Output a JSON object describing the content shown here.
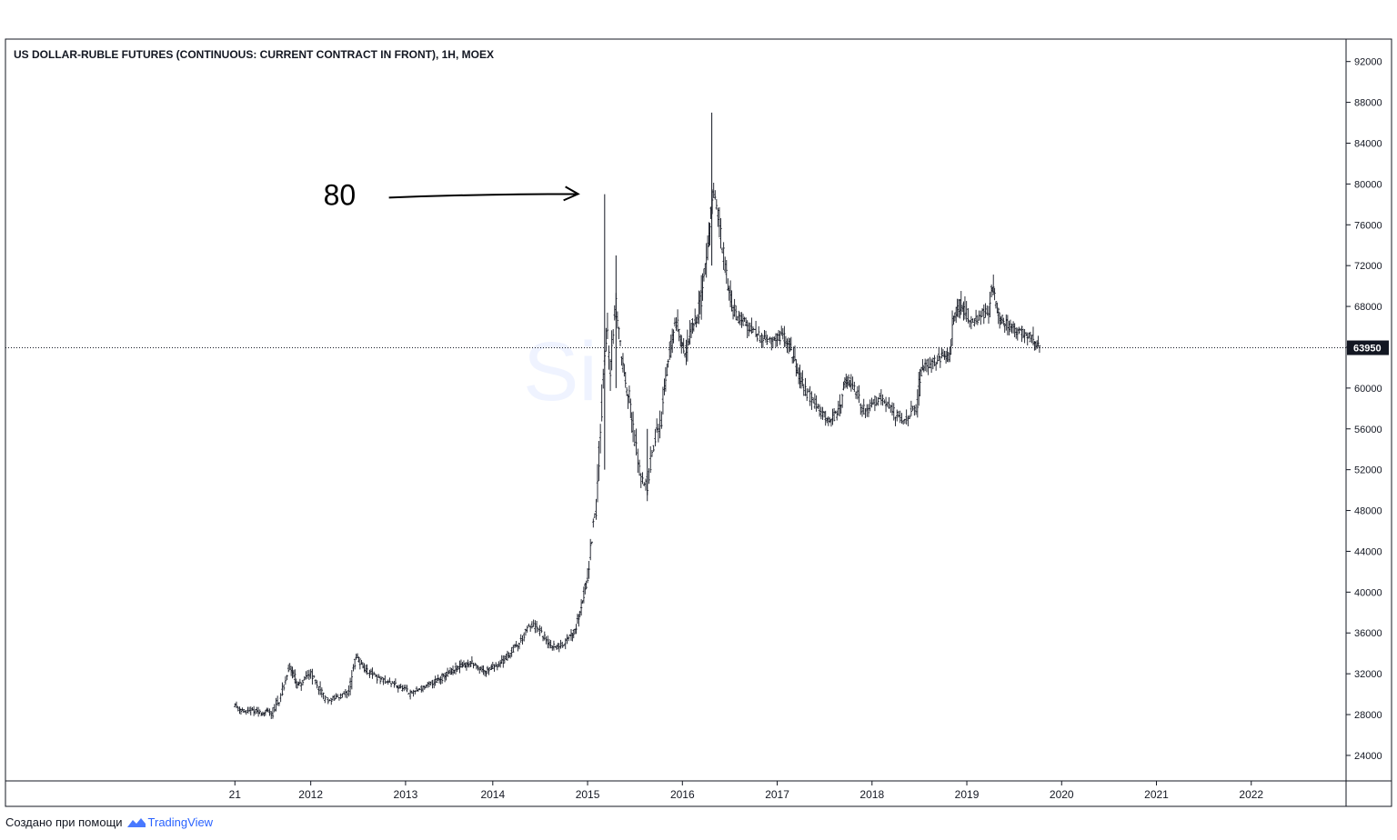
{
  "chart_data": {
    "type": "bar",
    "title": "US DOLLAR-RUBLE FUTURES (CONTINUOUS: CURRENT CONTRACT IN FRONT), 1H, MOEX",
    "watermark": "Si",
    "x_ticks": [
      "21",
      "2012",
      "2013",
      "2014",
      "2015",
      "2016",
      "2017",
      "2018",
      "2019",
      "2020",
      "2021",
      "2022"
    ],
    "x_tick_years": [
      2011.0,
      2011.8,
      2012.8,
      2013.72,
      2014.72,
      2015.72,
      2016.72,
      2017.72,
      2018.72,
      2019.72,
      2020.72,
      2021.72
    ],
    "y_ticks": [
      24000,
      28000,
      32000,
      36000,
      40000,
      44000,
      48000,
      52000,
      56000,
      60000,
      64000,
      68000,
      72000,
      76000,
      80000,
      84000,
      88000,
      92000
    ],
    "ylim": [
      21500,
      94200
    ],
    "xlim": [
      2008.58,
      2022.72
    ],
    "current_price": 63950,
    "current_price_label": "63950",
    "annotation": {
      "text": "80",
      "target_x": 2014.62,
      "target_y": 79200
    },
    "series": [
      {
        "points": [
          [
            2011.0,
            29000
          ],
          [
            2011.05,
            28600
          ],
          [
            2011.12,
            28200
          ],
          [
            2011.2,
            28400
          ],
          [
            2011.28,
            28100
          ],
          [
            2011.35,
            28300
          ],
          [
            2011.4,
            28000
          ],
          [
            2011.45,
            29200
          ],
          [
            2011.5,
            30000
          ],
          [
            2011.55,
            31800
          ],
          [
            2011.58,
            32800
          ],
          [
            2011.62,
            32000
          ],
          [
            2011.66,
            30800
          ],
          [
            2011.7,
            31000
          ],
          [
            2011.75,
            31500
          ],
          [
            2011.8,
            32200
          ],
          [
            2011.85,
            31200
          ],
          [
            2011.9,
            30400
          ],
          [
            2011.95,
            29600
          ],
          [
            2012.0,
            29400
          ],
          [
            2012.05,
            29600
          ],
          [
            2012.1,
            29800
          ],
          [
            2012.15,
            29900
          ],
          [
            2012.2,
            30200
          ],
          [
            2012.25,
            32500
          ],
          [
            2012.28,
            33600
          ],
          [
            2012.32,
            33200
          ],
          [
            2012.38,
            32400
          ],
          [
            2012.45,
            32000
          ],
          [
            2012.5,
            31600
          ],
          [
            2012.55,
            31400
          ],
          [
            2012.6,
            31200
          ],
          [
            2012.68,
            31000
          ],
          [
            2012.75,
            30600
          ],
          [
            2012.8,
            30400
          ],
          [
            2012.85,
            30000
          ],
          [
            2012.9,
            30300
          ],
          [
            2012.95,
            30500
          ],
          [
            2013.0,
            30700
          ],
          [
            2013.05,
            30900
          ],
          [
            2013.1,
            31200
          ],
          [
            2013.2,
            31700
          ],
          [
            2013.3,
            32200
          ],
          [
            2013.4,
            32800
          ],
          [
            2013.5,
            33000
          ],
          [
            2013.58,
            32600
          ],
          [
            2013.65,
            32200
          ],
          [
            2013.72,
            32700
          ],
          [
            2013.8,
            33000
          ],
          [
            2013.86,
            33600
          ],
          [
            2013.92,
            34200
          ],
          [
            2014.0,
            35000
          ],
          [
            2014.05,
            35800
          ],
          [
            2014.1,
            36500
          ],
          [
            2014.15,
            36800
          ],
          [
            2014.2,
            36300
          ],
          [
            2014.25,
            35800
          ],
          [
            2014.3,
            35000
          ],
          [
            2014.38,
            34600
          ],
          [
            2014.42,
            34600
          ],
          [
            2014.47,
            35000
          ],
          [
            2014.52,
            35600
          ],
          [
            2014.56,
            36000
          ],
          [
            2014.6,
            36700
          ],
          [
            2014.64,
            38300
          ],
          [
            2014.68,
            39600
          ],
          [
            2014.72,
            41500
          ],
          [
            2014.75,
            44000
          ],
          [
            2014.78,
            46500
          ],
          [
            2014.81,
            48000
          ],
          [
            2014.84,
            53000
          ],
          [
            2014.87,
            58000
          ],
          [
            2014.9,
            63000
          ],
          [
            2014.93,
            66000
          ],
          [
            2014.96,
            62000
          ],
          [
            2014.99,
            65000
          ],
          [
            2015.02,
            68000
          ],
          [
            2015.05,
            66000
          ],
          [
            2015.08,
            63000
          ],
          [
            2015.12,
            61000
          ],
          [
            2015.16,
            59000
          ],
          [
            2015.2,
            56000
          ],
          [
            2015.25,
            53000
          ],
          [
            2015.3,
            51000
          ],
          [
            2015.35,
            50500
          ],
          [
            2015.4,
            53500
          ],
          [
            2015.45,
            55500
          ],
          [
            2015.5,
            57000
          ],
          [
            2015.53,
            60000
          ],
          [
            2015.57,
            62500
          ],
          [
            2015.6,
            64000
          ],
          [
            2015.64,
            66000
          ],
          [
            2015.67,
            66500
          ],
          [
            2015.7,
            65000
          ],
          [
            2015.72,
            64000
          ],
          [
            2015.76,
            63500
          ],
          [
            2015.8,
            65500
          ],
          [
            2015.84,
            66500
          ],
          [
            2015.88,
            67000
          ],
          [
            2015.92,
            69000
          ],
          [
            2015.96,
            72000
          ],
          [
            2016.0,
            74000
          ],
          [
            2016.02,
            77000
          ],
          [
            2016.05,
            79000
          ],
          [
            2016.08,
            78000
          ],
          [
            2016.11,
            76000
          ],
          [
            2016.14,
            74000
          ],
          [
            2016.17,
            72000
          ],
          [
            2016.2,
            70000
          ],
          [
            2016.24,
            68500
          ],
          [
            2016.3,
            67000
          ],
          [
            2016.36,
            66500
          ],
          [
            2016.42,
            66000
          ],
          [
            2016.48,
            65500
          ],
          [
            2016.54,
            65000
          ],
          [
            2016.6,
            64800
          ],
          [
            2016.66,
            64500
          ],
          [
            2016.72,
            64800
          ],
          [
            2016.78,
            65200
          ],
          [
            2016.84,
            64500
          ],
          [
            2016.88,
            63500
          ],
          [
            2016.92,
            62000
          ],
          [
            2016.96,
            61000
          ],
          [
            2017.0,
            60000
          ],
          [
            2017.05,
            59300
          ],
          [
            2017.1,
            58700
          ],
          [
            2017.15,
            58000
          ],
          [
            2017.2,
            57500
          ],
          [
            2017.26,
            57000
          ],
          [
            2017.32,
            57200
          ],
          [
            2017.38,
            57800
          ],
          [
            2017.42,
            60000
          ],
          [
            2017.46,
            60800
          ],
          [
            2017.5,
            60500
          ],
          [
            2017.55,
            59800
          ],
          [
            2017.6,
            58300
          ],
          [
            2017.65,
            57600
          ],
          [
            2017.7,
            58200
          ],
          [
            2017.75,
            58600
          ],
          [
            2017.8,
            59200
          ],
          [
            2017.85,
            59000
          ],
          [
            2017.9,
            58300
          ],
          [
            2017.95,
            57600
          ],
          [
            2018.0,
            57000
          ],
          [
            2018.05,
            56800
          ],
          [
            2018.1,
            57200
          ],
          [
            2018.15,
            57800
          ],
          [
            2018.2,
            58200
          ],
          [
            2018.24,
            61500
          ],
          [
            2018.28,
            62500
          ],
          [
            2018.33,
            62300
          ],
          [
            2018.38,
            62600
          ],
          [
            2018.44,
            63000
          ],
          [
            2018.5,
            63200
          ],
          [
            2018.54,
            63300
          ],
          [
            2018.58,
            67000
          ],
          [
            2018.62,
            67500
          ],
          [
            2018.66,
            68500
          ],
          [
            2018.7,
            67500
          ],
          [
            2018.75,
            66500
          ],
          [
            2018.8,
            66500
          ],
          [
            2018.85,
            67000
          ],
          [
            2018.9,
            67300
          ],
          [
            2018.95,
            67500
          ],
          [
            2018.98,
            69500
          ],
          [
            2019.0,
            69800
          ],
          [
            2019.04,
            68000
          ],
          [
            2019.08,
            66800
          ],
          [
            2019.12,
            66500
          ],
          [
            2019.18,
            66000
          ],
          [
            2019.24,
            65800
          ],
          [
            2019.3,
            65500
          ],
          [
            2019.36,
            65000
          ],
          [
            2019.42,
            64800
          ],
          [
            2019.46,
            64300
          ],
          [
            2019.5,
            64000
          ]
        ]
      }
    ]
  },
  "footer": {
    "text": "Создано при помощи",
    "brand": "TradingView"
  }
}
